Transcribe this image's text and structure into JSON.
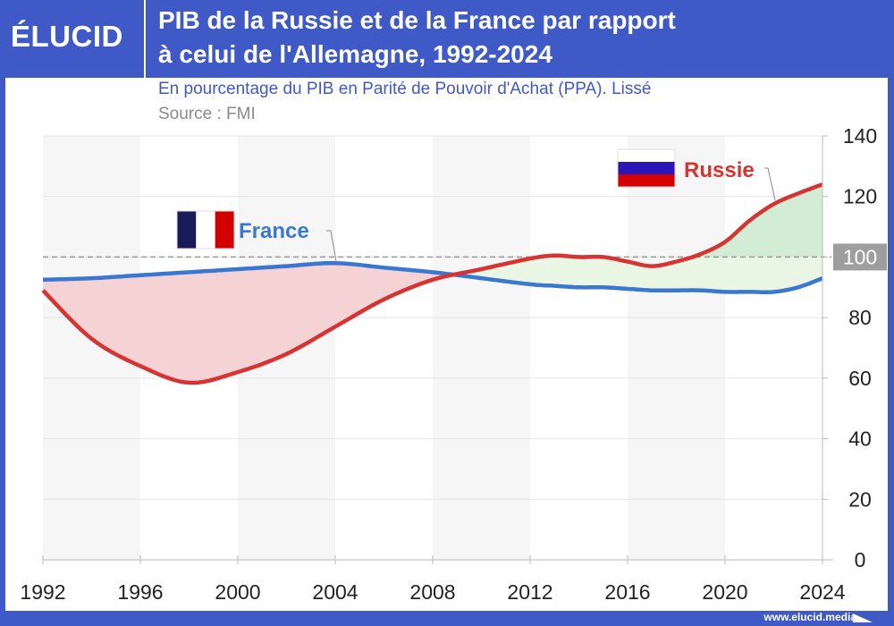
{
  "header": {
    "logo": "ÉLUCID",
    "title_line1": "PIB de la Russie et de la France par rapport",
    "title_line2": "à celui de l'Allemagne, 1992-2024"
  },
  "subtitle": "En pourcentage du PIB en Parité de Pouvoir d'Achat (PPA). Lissé",
  "source": "Source : FMI",
  "footer": "www.elucid.media",
  "colors": {
    "brand": "#3f59c6",
    "russia": "#d63333",
    "france": "#3a78d0",
    "below_fill": "#f5d3d5",
    "above_fill": "#eaf6e4",
    "above_100_fill": "#d3ecd5"
  },
  "chart_data": {
    "type": "line",
    "title": "PIB de la Russie et de la France par rapport à celui de l'Allemagne, 1992-2024",
    "xlim": [
      1992,
      2024
    ],
    "ylim": [
      0,
      140
    ],
    "x_ticks": [
      1992,
      1996,
      2000,
      2004,
      2008,
      2012,
      2016,
      2020,
      2024
    ],
    "y_ticks": [
      0,
      20,
      40,
      60,
      80,
      100,
      120,
      140
    ],
    "y_axis_position": "right",
    "reference_line": 100,
    "grid": true,
    "x": [
      1992,
      1994,
      1996,
      1998,
      2000,
      2002,
      2004,
      2006,
      2008,
      2010,
      2012,
      2013,
      2014,
      2015,
      2016,
      2017,
      2018,
      2019,
      2020,
      2021,
      2022,
      2023,
      2024
    ],
    "series": [
      {
        "name": "Russie",
        "flag": "russia-flag",
        "values": [
          89,
          73,
          64,
          58.5,
          62,
          68,
          77,
          86,
          92.5,
          96,
          99.5,
          100.5,
          100,
          100,
          98.5,
          97,
          98.5,
          101,
          105,
          112,
          117.5,
          121,
          124
        ]
      },
      {
        "name": "France",
        "flag": "france-flag",
        "values": [
          92.5,
          93,
          94,
          95,
          96,
          97,
          98,
          96.5,
          95,
          93,
          91,
          90.5,
          90,
          90,
          89.5,
          89,
          89,
          89,
          88.5,
          88.5,
          88.5,
          90,
          93
        ]
      }
    ]
  }
}
